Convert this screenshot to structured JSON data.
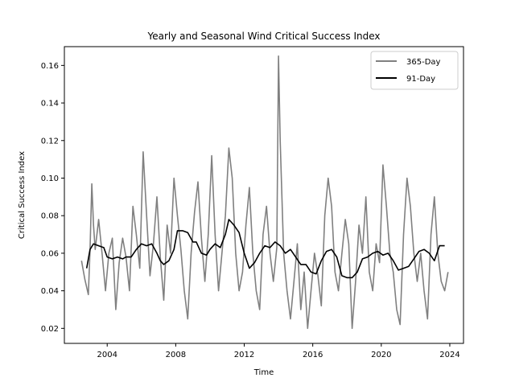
{
  "chart_data": {
    "type": "line",
    "title": "Yearly and Seasonal Wind Critical Success Index",
    "xlabel": "Time",
    "ylabel": "Critical Success Index",
    "xlim": [
      2001.5,
      2024.8
    ],
    "ylim": [
      0.012,
      0.17
    ],
    "x_ticks": [
      2004,
      2008,
      2012,
      2016,
      2020,
      2024
    ],
    "x_tick_labels": [
      "2004",
      "2008",
      "2012",
      "2016",
      "2020",
      "2024"
    ],
    "y_ticks": [
      0.02,
      0.04,
      0.06,
      0.08,
      0.1,
      0.12,
      0.14,
      0.16
    ],
    "y_tick_labels": [
      "0.02",
      "0.04",
      "0.06",
      "0.08",
      "0.10",
      "0.12",
      "0.14",
      "0.16"
    ],
    "grid": false,
    "legend_position": "top-right",
    "legend": [
      "365-Day",
      "91-Day"
    ],
    "series": [
      {
        "name": "365-Day",
        "color": "#808080",
        "x": [
          2002.5,
          2002.7,
          2002.9,
          2003.0,
          2003.1,
          2003.2,
          2003.3,
          2003.5,
          2003.7,
          2003.9,
          2004.1,
          2004.3,
          2004.5,
          2004.7,
          2004.9,
          2005.1,
          2005.3,
          2005.5,
          2005.7,
          2005.9,
          2006.1,
          2006.3,
          2006.5,
          2006.7,
          2006.9,
          2007.1,
          2007.3,
          2007.5,
          2007.7,
          2007.9,
          2008.1,
          2008.3,
          2008.5,
          2008.7,
          2008.9,
          2009.1,
          2009.3,
          2009.5,
          2009.7,
          2009.9,
          2010.1,
          2010.3,
          2010.5,
          2010.7,
          2010.9,
          2011.1,
          2011.3,
          2011.5,
          2011.7,
          2011.9,
          2012.1,
          2012.3,
          2012.5,
          2012.7,
          2012.9,
          2013.1,
          2013.3,
          2013.5,
          2013.7,
          2013.9,
          2014.0,
          2014.1,
          2014.3,
          2014.5,
          2014.7,
          2014.9,
          2015.1,
          2015.3,
          2015.5,
          2015.7,
          2015.9,
          2016.1,
          2016.3,
          2016.5,
          2016.7,
          2016.9,
          2017.1,
          2017.3,
          2017.5,
          2017.7,
          2017.9,
          2018.1,
          2018.3,
          2018.5,
          2018.7,
          2018.9,
          2019.1,
          2019.3,
          2019.5,
          2019.7,
          2019.9,
          2020.1,
          2020.3,
          2020.5,
          2020.7,
          2020.9,
          2021.1,
          2021.3,
          2021.5,
          2021.7,
          2021.9,
          2022.1,
          2022.3,
          2022.5,
          2022.7,
          2022.9,
          2023.1,
          2023.3,
          2023.5,
          2023.7,
          2023.9
        ],
        "values": [
          0.056,
          0.046,
          0.038,
          0.062,
          0.097,
          0.075,
          0.062,
          0.078,
          0.06,
          0.04,
          0.06,
          0.068,
          0.03,
          0.055,
          0.068,
          0.058,
          0.04,
          0.085,
          0.07,
          0.052,
          0.114,
          0.08,
          0.048,
          0.065,
          0.09,
          0.058,
          0.035,
          0.075,
          0.06,
          0.1,
          0.08,
          0.062,
          0.04,
          0.025,
          0.06,
          0.082,
          0.098,
          0.068,
          0.045,
          0.07,
          0.112,
          0.07,
          0.04,
          0.06,
          0.08,
          0.116,
          0.1,
          0.06,
          0.04,
          0.05,
          0.075,
          0.095,
          0.06,
          0.04,
          0.03,
          0.07,
          0.085,
          0.06,
          0.045,
          0.063,
          0.165,
          0.12,
          0.06,
          0.04,
          0.025,
          0.045,
          0.065,
          0.03,
          0.05,
          0.02,
          0.04,
          0.06,
          0.048,
          0.032,
          0.08,
          0.1,
          0.085,
          0.05,
          0.04,
          0.06,
          0.078,
          0.065,
          0.02,
          0.045,
          0.075,
          0.06,
          0.09,
          0.05,
          0.04,
          0.065,
          0.055,
          0.107,
          0.085,
          0.06,
          0.05,
          0.03,
          0.022,
          0.07,
          0.1,
          0.085,
          0.06,
          0.045,
          0.06,
          0.04,
          0.025,
          0.07,
          0.09,
          0.06,
          0.045,
          0.04,
          0.05
        ]
      },
      {
        "name": "91-Day",
        "color": "#000000",
        "x": [
          2002.8,
          2003.0,
          2003.2,
          2003.5,
          2003.8,
          2004.0,
          2004.3,
          2004.6,
          2004.9,
          2005.1,
          2005.4,
          2005.7,
          2006.0,
          2006.3,
          2006.6,
          2006.9,
          2007.1,
          2007.3,
          2007.6,
          2007.9,
          2008.1,
          2008.4,
          2008.7,
          2009.0,
          2009.2,
          2009.5,
          2009.8,
          2010.0,
          2010.3,
          2010.6,
          2010.9,
          2011.1,
          2011.4,
          2011.7,
          2012.0,
          2012.3,
          2012.6,
          2012.9,
          2013.2,
          2013.5,
          2013.8,
          2014.1,
          2014.4,
          2014.7,
          2015.0,
          2015.3,
          2015.6,
          2015.9,
          2016.2,
          2016.5,
          2016.8,
          2017.1,
          2017.4,
          2017.7,
          2018.0,
          2018.3,
          2018.6,
          2018.9,
          2019.2,
          2019.5,
          2019.8,
          2020.1,
          2020.4,
          2020.7,
          2021.0,
          2021.3,
          2021.6,
          2021.9,
          2022.2,
          2022.5,
          2022.8,
          2023.1,
          2023.4,
          2023.7
        ],
        "values": [
          0.052,
          0.062,
          0.065,
          0.064,
          0.063,
          0.058,
          0.057,
          0.058,
          0.057,
          0.058,
          0.058,
          0.062,
          0.065,
          0.064,
          0.065,
          0.06,
          0.056,
          0.054,
          0.056,
          0.062,
          0.072,
          0.072,
          0.071,
          0.066,
          0.066,
          0.06,
          0.059,
          0.062,
          0.065,
          0.063,
          0.07,
          0.078,
          0.075,
          0.071,
          0.06,
          0.052,
          0.055,
          0.06,
          0.064,
          0.063,
          0.066,
          0.064,
          0.06,
          0.062,
          0.058,
          0.054,
          0.054,
          0.05,
          0.049,
          0.056,
          0.061,
          0.062,
          0.058,
          0.048,
          0.047,
          0.047,
          0.05,
          0.057,
          0.058,
          0.06,
          0.061,
          0.059,
          0.06,
          0.056,
          0.051,
          0.052,
          0.053,
          0.057,
          0.061,
          0.062,
          0.06,
          0.056,
          0.064,
          0.064
        ]
      }
    ]
  }
}
